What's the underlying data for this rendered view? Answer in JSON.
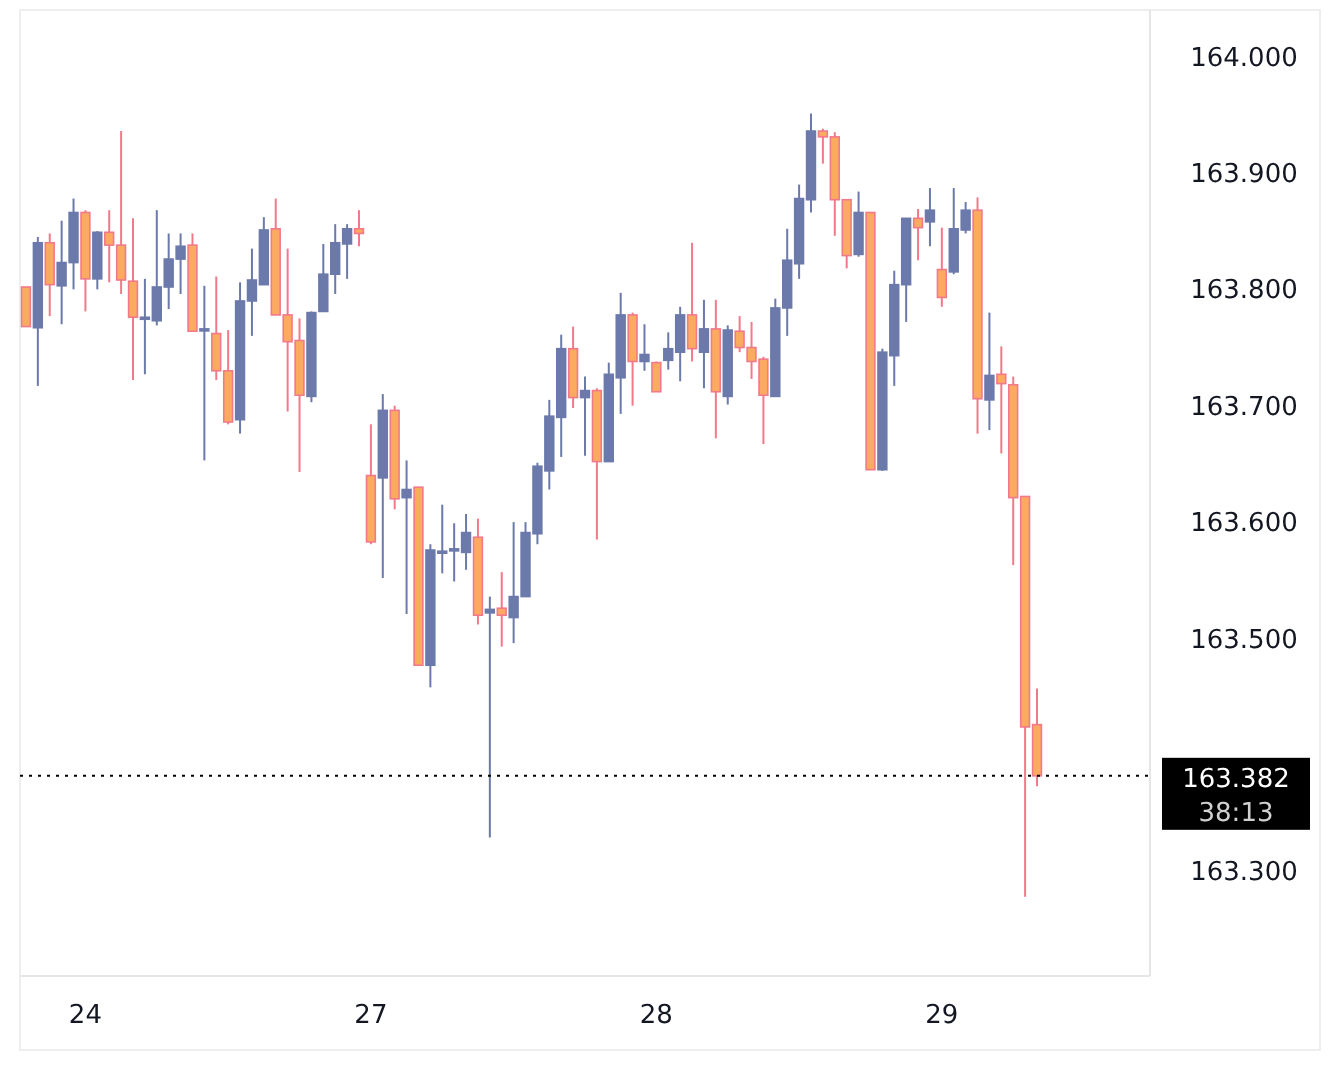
{
  "chart_data": {
    "type": "candlestick",
    "categories": [
      null,
      null,
      null,
      null,
      null,
      "24",
      null,
      null,
      null,
      null,
      null,
      null,
      null,
      null,
      null,
      null,
      null,
      null,
      null,
      null,
      null,
      null,
      null,
      null,
      null,
      null,
      null,
      null,
      null,
      "27",
      null,
      null,
      null,
      null,
      null,
      null,
      null,
      null,
      null,
      null,
      null,
      null,
      null,
      null,
      null,
      null,
      null,
      null,
      null,
      null,
      null,
      null,
      null,
      "28",
      null,
      null,
      null,
      null,
      null,
      null,
      null,
      null,
      null,
      null,
      null,
      null,
      null,
      null,
      null,
      null,
      null,
      null,
      null,
      null,
      null,
      null,
      null,
      "29",
      null,
      null,
      null,
      null,
      null,
      null,
      null,
      null,
      null,
      null,
      null,
      null,
      null,
      null,
      null,
      null,
      null
    ],
    "ohlc": [
      [
        163.802,
        163.802,
        163.768,
        163.768
      ],
      [
        163.767,
        163.845,
        163.717,
        163.84
      ],
      [
        163.84,
        163.848,
        163.777,
        163.804
      ],
      [
        163.803,
        163.859,
        163.77,
        163.823
      ],
      [
        163.823,
        163.878,
        163.8,
        163.866
      ],
      [
        163.866,
        163.868,
        163.781,
        163.809
      ],
      [
        163.809,
        163.85,
        163.8,
        163.849
      ],
      [
        163.849,
        163.868,
        163.806,
        163.838
      ],
      [
        163.838,
        163.936,
        163.796,
        163.808
      ],
      [
        163.807,
        163.861,
        163.722,
        163.776
      ],
      [
        163.775,
        163.809,
        163.727,
        163.776
      ],
      [
        163.773,
        163.868,
        163.769,
        163.802
      ],
      [
        163.802,
        163.848,
        163.783,
        163.826
      ],
      [
        163.826,
        163.848,
        163.796,
        163.837
      ],
      [
        163.838,
        163.848,
        163.764,
        163.764
      ],
      [
        163.765,
        163.803,
        163.653,
        163.766
      ],
      [
        163.762,
        163.811,
        163.722,
        163.73
      ],
      [
        163.73,
        163.765,
        163.684,
        163.686
      ],
      [
        163.688,
        163.806,
        163.676,
        163.79
      ],
      [
        163.79,
        163.835,
        163.76,
        163.808
      ],
      [
        163.804,
        163.862,
        163.804,
        163.851
      ],
      [
        163.852,
        163.878,
        163.778,
        163.778
      ],
      [
        163.778,
        163.835,
        163.695,
        163.755
      ],
      [
        163.756,
        163.775,
        163.643,
        163.709
      ],
      [
        163.708,
        163.781,
        163.703,
        163.78
      ],
      [
        163.781,
        163.839,
        163.781,
        163.813
      ],
      [
        163.813,
        163.856,
        163.796,
        163.84
      ],
      [
        163.839,
        163.856,
        163.809,
        163.852
      ],
      [
        163.852,
        163.868,
        163.837,
        163.848
      ],
      [
        163.64,
        163.684,
        163.581,
        163.583
      ],
      [
        163.638,
        163.71,
        163.552,
        163.696
      ],
      [
        163.696,
        163.7,
        163.611,
        163.62
      ],
      [
        163.621,
        163.653,
        163.521,
        163.628
      ],
      [
        163.63,
        163.63,
        163.477,
        163.477
      ],
      [
        163.477,
        163.581,
        163.458,
        163.576
      ],
      [
        163.574,
        163.615,
        163.556,
        163.575
      ],
      [
        163.576,
        163.599,
        163.549,
        163.577
      ],
      [
        163.574,
        163.607,
        163.559,
        163.591
      ],
      [
        163.587,
        163.603,
        163.512,
        163.52
      ],
      [
        163.522,
        163.536,
        163.329,
        163.525
      ],
      [
        163.526,
        163.557,
        163.493,
        163.52
      ],
      [
        163.518,
        163.6,
        163.496,
        163.536
      ],
      [
        163.536,
        163.6,
        163.536,
        163.591
      ],
      [
        163.59,
        163.651,
        163.581,
        163.648
      ],
      [
        163.644,
        163.705,
        163.628,
        163.691
      ],
      [
        163.69,
        163.761,
        163.656,
        163.749
      ],
      [
        163.749,
        163.768,
        163.698,
        163.707
      ],
      [
        163.707,
        163.725,
        163.657,
        163.713
      ],
      [
        163.713,
        163.715,
        163.585,
        163.652
      ],
      [
        163.652,
        163.737,
        163.652,
        163.727
      ],
      [
        163.724,
        163.797,
        163.693,
        163.778
      ],
      [
        163.778,
        163.78,
        163.7,
        163.738
      ],
      [
        163.738,
        163.77,
        163.73,
        163.744
      ],
      [
        163.737,
        163.738,
        163.712,
        163.712
      ],
      [
        163.739,
        163.763,
        163.731,
        163.749
      ],
      [
        163.746,
        163.785,
        163.721,
        163.778
      ],
      [
        163.778,
        163.84,
        163.738,
        163.749
      ],
      [
        163.746,
        163.791,
        163.715,
        163.766
      ],
      [
        163.766,
        163.791,
        163.672,
        163.712
      ],
      [
        163.708,
        163.769,
        163.701,
        163.765
      ],
      [
        163.764,
        163.777,
        163.746,
        163.75
      ],
      [
        163.75,
        163.772,
        163.723,
        163.738
      ],
      [
        163.74,
        163.742,
        163.667,
        163.709
      ],
      [
        163.708,
        163.792,
        163.708,
        163.784
      ],
      [
        163.784,
        163.852,
        163.76,
        163.825
      ],
      [
        163.822,
        163.89,
        163.809,
        163.878
      ],
      [
        163.877,
        163.951,
        163.866,
        163.936
      ],
      [
        163.936,
        163.938,
        163.908,
        163.931
      ],
      [
        163.931,
        163.935,
        163.846,
        163.877
      ],
      [
        163.877,
        163.877,
        163.818,
        163.829
      ],
      [
        163.83,
        163.884,
        163.828,
        163.866
      ],
      [
        163.866,
        163.866,
        163.645,
        163.645
      ],
      [
        163.645,
        163.749,
        163.644,
        163.746
      ],
      [
        163.743,
        163.816,
        163.717,
        163.804
      ],
      [
        163.804,
        163.861,
        163.772,
        163.861
      ],
      [
        163.861,
        163.869,
        163.825,
        163.853
      ],
      [
        163.858,
        163.887,
        163.837,
        163.868
      ],
      [
        163.817,
        163.853,
        163.785,
        163.793
      ],
      [
        163.815,
        163.887,
        163.813,
        163.852
      ],
      [
        163.851,
        163.875,
        163.848,
        163.868
      ],
      [
        163.868,
        163.879,
        163.676,
        163.706
      ],
      [
        163.705,
        163.78,
        163.679,
        163.726
      ],
      [
        163.727,
        163.751,
        163.659,
        163.719
      ],
      [
        163.718,
        163.725,
        163.563,
        163.621
      ],
      [
        163.622,
        163.622,
        163.278,
        163.424
      ],
      [
        163.426,
        163.457,
        163.373,
        163.382
      ],
      null,
      null,
      null,
      null,
      null,
      null,
      null,
      null,
      null
    ],
    "ylim": [
      163.21,
      164.04
    ],
    "yticks": [
      {
        "value": 163.3,
        "label": "163.300"
      },
      {
        "value": 163.5,
        "label": "163.500"
      },
      {
        "value": 163.6,
        "label": "163.600"
      },
      {
        "value": 163.7,
        "label": "163.700"
      },
      {
        "value": 163.8,
        "label": "163.800"
      },
      {
        "value": 163.9,
        "label": "163.900"
      },
      {
        "value": 164.0,
        "label": "164.000"
      }
    ],
    "ref_lines": [
      {
        "axis": "y",
        "value": 163.382,
        "label": "163.382",
        "color": "#000000",
        "line_style": "dotted"
      }
    ],
    "annotations": [
      "38:13"
    ],
    "grid": false
  }
}
